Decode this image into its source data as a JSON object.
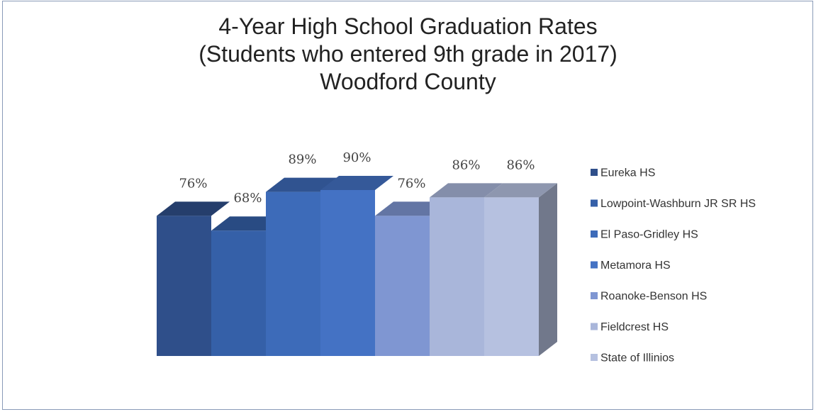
{
  "chart_data": {
    "type": "bar",
    "title": [
      "4-Year High School Graduation Rates",
      "(Students who entered 9th grade in 2017)",
      "Woodford County"
    ],
    "categories": [
      "Eureka HS",
      "Lowpoint-Washburn JR SR HS",
      "El Paso-Gridley HS",
      "Metamora HS",
      "Roanoke-Benson HS",
      "Fieldcrest HS",
      "State of Illinios"
    ],
    "values": [
      76,
      68,
      89,
      90,
      76,
      86,
      86
    ],
    "value_labels": [
      "76%",
      "68%",
      "89%",
      "90%",
      "76%",
      "86%",
      "86%"
    ],
    "colors": [
      "#2f4f8a",
      "#3560a8",
      "#3d6bb9",
      "#4472c4",
      "#7f96d2",
      "#a9b6da",
      "#b6c1e0"
    ],
    "legend_position": "right",
    "grid": false,
    "style": "3d-columns"
  }
}
